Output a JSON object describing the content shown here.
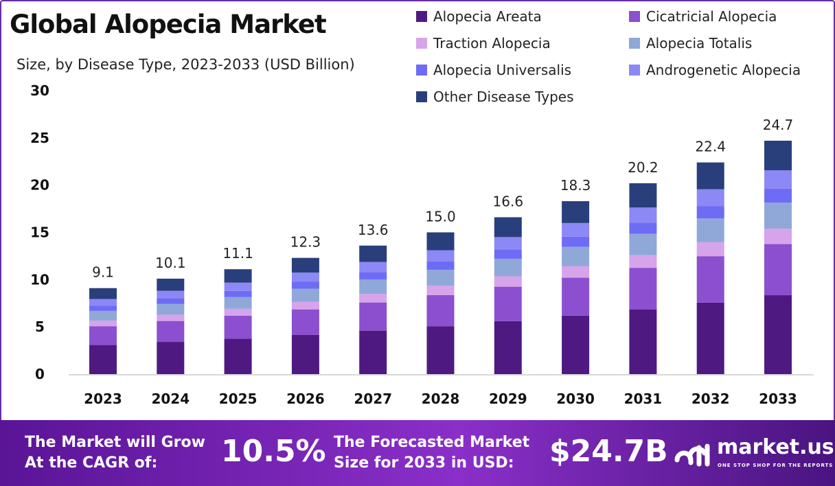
{
  "chart_data": {
    "type": "bar",
    "stacked": true,
    "title": "Global Alopecia Market",
    "subtitle": "Size, by Disease Type, 2023-2033 (USD Billion)",
    "categories": [
      "2023",
      "2024",
      "2025",
      "2026",
      "2027",
      "2028",
      "2029",
      "2030",
      "2031",
      "2032",
      "2033"
    ],
    "totals": [
      "9.1",
      "10.1",
      "11.1",
      "12.3",
      "13.6",
      "15.0",
      "16.6",
      "18.3",
      "20.2",
      "22.4",
      "24.7"
    ],
    "ylim": [
      0,
      30
    ],
    "yticks": [
      "0",
      "5",
      "10",
      "15",
      "20",
      "25",
      "30"
    ],
    "grid": false,
    "legend_position": "top-right",
    "series": [
      {
        "name": "Alopecia Areata",
        "color": "#4e1a82",
        "values": [
          3.08,
          3.41,
          3.75,
          4.16,
          4.6,
          5.07,
          5.61,
          6.19,
          6.83,
          7.57,
          8.35
        ]
      },
      {
        "name": "Cicatricial Alopecia",
        "color": "#8b4fcf",
        "values": [
          1.99,
          2.21,
          2.43,
          2.69,
          2.98,
          3.29,
          3.64,
          4.01,
          4.42,
          4.91,
          5.41
        ]
      },
      {
        "name": "Traction Alopecia",
        "color": "#d7a3ea",
        "values": [
          0.6,
          0.67,
          0.73,
          0.81,
          0.9,
          0.99,
          1.1,
          1.21,
          1.33,
          1.48,
          1.63
        ]
      },
      {
        "name": "Alopecia Totalis",
        "color": "#8fa8d8",
        "values": [
          1.02,
          1.13,
          1.24,
          1.38,
          1.52,
          1.68,
          1.86,
          2.05,
          2.26,
          2.51,
          2.77
        ]
      },
      {
        "name": "Alopecia Universalis",
        "color": "#6e6cf5",
        "values": [
          0.54,
          0.6,
          0.65,
          0.73,
          0.8,
          0.89,
          0.98,
          1.08,
          1.19,
          1.32,
          1.46
        ]
      },
      {
        "name": "Androgenetic Alopecia",
        "color": "#8c88f5",
        "values": [
          0.72,
          0.8,
          0.88,
          0.97,
          1.07,
          1.19,
          1.31,
          1.45,
          1.6,
          1.77,
          1.95
        ]
      },
      {
        "name": "Other Disease Types",
        "color": "#293f7c",
        "values": [
          1.15,
          1.28,
          1.42,
          1.56,
          1.73,
          1.89,
          2.1,
          2.31,
          2.57,
          2.84,
          3.13
        ]
      }
    ]
  },
  "footer": {
    "cagr_label_1": "The Market will Grow",
    "cagr_label_2": "At the CAGR of:",
    "cagr_value": "10.5%",
    "size_label_1": "The Forecasted Market",
    "size_label_2": "Size for 2033 in USD:",
    "size_value": "$24.7B",
    "brand": "market.us",
    "brand_tagline": "ONE STOP SHOP FOR THE REPORTS"
  }
}
